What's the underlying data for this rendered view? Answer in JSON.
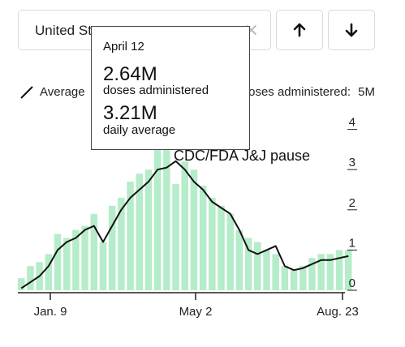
{
  "search": {
    "value": "United States"
  },
  "icons": {
    "clear": "close-icon",
    "up": "arrow-up-icon",
    "down": "arrow-down-icon"
  },
  "legend": {
    "average_label": "Average",
    "bars_label": "Doses administered:",
    "unit_label": "5M"
  },
  "tooltip": {
    "date": "April 12",
    "doses_value": "2.64M",
    "doses_label": "doses administered",
    "average_value": "3.21M",
    "average_label": "daily average"
  },
  "annotation": "CDC/FDA J&J pause",
  "colors": {
    "bars": "#b5ecc9",
    "line": "#111111",
    "axis": "#222222"
  },
  "chart_data": {
    "type": "bar",
    "title": "",
    "xlabel": "",
    "ylabel": "",
    "ylim": [
      0,
      5
    ],
    "y_ticks": [
      "0",
      "1",
      "2",
      "3",
      "4",
      "5M"
    ],
    "x_ticks": [
      "Jan. 9",
      "May 2",
      "Aug. 23"
    ],
    "x_range": [
      "2020-12-14",
      "2021-08-23"
    ],
    "grid": false,
    "legend_position": "top",
    "series": [
      {
        "name": "Doses administered",
        "kind": "bar",
        "x": [
          "2020-12-14",
          "2020-12-21",
          "2020-12-28",
          "2021-01-04",
          "2021-01-11",
          "2021-01-18",
          "2021-01-25",
          "2021-02-01",
          "2021-02-08",
          "2021-02-15",
          "2021-02-22",
          "2021-03-01",
          "2021-03-08",
          "2021-03-15",
          "2021-03-22",
          "2021-03-29",
          "2021-04-05",
          "2021-04-12",
          "2021-04-19",
          "2021-04-26",
          "2021-05-03",
          "2021-05-10",
          "2021-05-17",
          "2021-05-24",
          "2021-05-31",
          "2021-06-07",
          "2021-06-14",
          "2021-06-21",
          "2021-06-28",
          "2021-07-05",
          "2021-07-12",
          "2021-07-19",
          "2021-07-26",
          "2021-08-02",
          "2021-08-09",
          "2021-08-16",
          "2021-08-23"
        ],
        "values": [
          0.3,
          0.6,
          0.7,
          0.9,
          1.4,
          1.3,
          1.5,
          1.6,
          1.9,
          1.2,
          2.1,
          2.3,
          2.7,
          2.9,
          3.0,
          3.5,
          3.7,
          2.64,
          3.2,
          3.0,
          2.6,
          2.3,
          2.1,
          1.9,
          1.5,
          1.3,
          1.2,
          1.0,
          0.9,
          0.6,
          0.5,
          0.6,
          0.8,
          0.9,
          0.9,
          1.0,
          1.0
        ]
      },
      {
        "name": "Average",
        "kind": "line",
        "x": [
          "2020-12-14",
          "2020-12-21",
          "2020-12-28",
          "2021-01-04",
          "2021-01-11",
          "2021-01-18",
          "2021-01-25",
          "2021-02-01",
          "2021-02-08",
          "2021-02-15",
          "2021-02-22",
          "2021-03-01",
          "2021-03-08",
          "2021-03-15",
          "2021-03-22",
          "2021-03-29",
          "2021-04-05",
          "2021-04-12",
          "2021-04-19",
          "2021-04-26",
          "2021-05-03",
          "2021-05-10",
          "2021-05-17",
          "2021-05-24",
          "2021-05-31",
          "2021-06-07",
          "2021-06-14",
          "2021-06-21",
          "2021-06-28",
          "2021-07-05",
          "2021-07-12",
          "2021-07-19",
          "2021-07-26",
          "2021-08-02",
          "2021-08-09",
          "2021-08-16",
          "2021-08-23"
        ],
        "values": [
          0.05,
          0.2,
          0.35,
          0.6,
          1.0,
          1.2,
          1.3,
          1.5,
          1.6,
          1.2,
          1.6,
          2.0,
          2.3,
          2.5,
          2.7,
          3.0,
          3.05,
          3.21,
          3.0,
          2.7,
          2.5,
          2.2,
          2.05,
          1.9,
          1.5,
          1.0,
          0.9,
          1.0,
          1.1,
          0.6,
          0.5,
          0.55,
          0.65,
          0.75,
          0.75,
          0.8,
          0.85
        ]
      }
    ]
  }
}
